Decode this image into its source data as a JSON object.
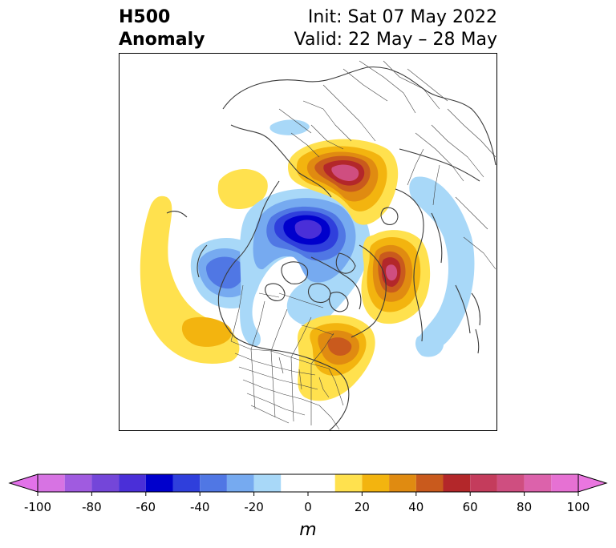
{
  "title": {
    "left_line1": "H500",
    "left_line2": "Anomaly",
    "init": "Init: Sat 07 May 2022",
    "valid": "Valid: 22 May – 28 May"
  },
  "map": {
    "projection": "north-polar-stereographic",
    "features": [
      "coastlines",
      "country-borders",
      "us-state-borders",
      "canada-province-borders"
    ],
    "anomaly_centers": [
      {
        "region": "Northern Europe / Scandinavia",
        "sign": "positive",
        "level": 70
      },
      {
        "region": "Arctic Ocean north of Siberia",
        "sign": "negative",
        "level": -60
      },
      {
        "region": "North Pacific / Bering Sea",
        "sign": "negative",
        "level": -40
      },
      {
        "region": "East Siberia / NE Asia",
        "sign": "positive",
        "level": 70
      },
      {
        "region": "Eastern United States",
        "sign": "positive",
        "level": 40
      },
      {
        "region": "Eastern North Atlantic",
        "sign": "positive",
        "level": 10
      },
      {
        "region": "Eastern Pacific subtropics",
        "sign": "positive",
        "level": 20
      },
      {
        "region": "Greenland Sea",
        "sign": "positive",
        "level": 10
      },
      {
        "region": "Western North Pacific",
        "sign": "negative",
        "level": -10
      },
      {
        "region": "Arctic Canada",
        "sign": "negative",
        "level": -10
      }
    ]
  },
  "colorbar": {
    "unit": "m",
    "extend": "both",
    "levels": [
      -100,
      -90,
      -80,
      -70,
      -60,
      -50,
      -40,
      -30,
      -20,
      -10,
      10,
      20,
      30,
      40,
      50,
      60,
      70,
      80,
      90,
      100
    ],
    "colors": [
      "#d773e3",
      "#a05be0",
      "#7446d9",
      "#4a2fd8",
      "#0000cc",
      "#2f3fdc",
      "#5077e4",
      "#76aaf0",
      "#a8d8f8",
      "#ffffff",
      "#ffe14e",
      "#f3b40f",
      "#e08b11",
      "#c95a1d",
      "#b3272a",
      "#c43c5c",
      "#cf4e80",
      "#dc62ab",
      "#e671d3"
    ],
    "under_color": "#e272e9",
    "over_color": "#ea76e0",
    "tick_labels": [
      "-100",
      "-80",
      "-60",
      "-40",
      "-20",
      "0",
      "20",
      "40",
      "60",
      "80",
      "100"
    ]
  }
}
